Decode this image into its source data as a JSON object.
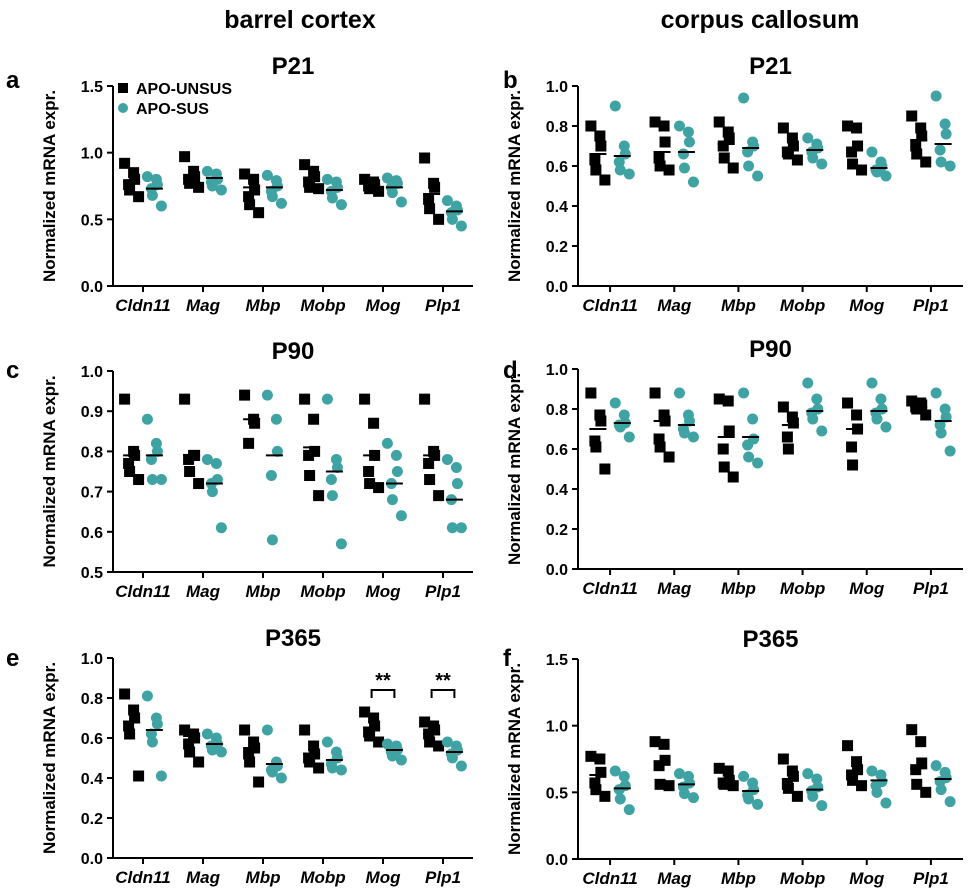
{
  "figure": {
    "columns": [
      "barrel cortex",
      "corpus callosum"
    ],
    "legend": [
      {
        "label": "APO-UNSUS",
        "marker": "square",
        "color": "#000000"
      },
      {
        "label": "APO-SUS",
        "marker": "circle",
        "color": "#3fa3a3"
      }
    ],
    "colors": {
      "unsus": "#000000",
      "sus": "#3fa3a3"
    }
  },
  "chart_data": [
    {
      "panel": "a",
      "type": "scatter",
      "title": "P21",
      "ylabel": "Normalized mRNA expr.",
      "ylim": [
        0,
        1.5
      ],
      "yticks": [
        "0.0",
        "0.5",
        "1.0",
        "1.5"
      ],
      "categories": [
        "Cldn11",
        "Mag",
        "Mbp",
        "Mobp",
        "Mog",
        "Plp1"
      ],
      "legend_position": "top-left",
      "series": [
        {
          "name": "APO-UNSUS",
          "means": [
            0.78,
            0.81,
            0.74,
            0.8,
            0.76,
            0.69
          ],
          "values": [
            [
              0.92,
              0.85,
              0.8,
              0.76,
              0.72,
              0.67
            ],
            [
              0.97,
              0.86,
              0.82,
              0.8,
              0.77,
              0.74
            ],
            [
              0.84,
              0.8,
              0.72,
              0.67,
              0.61,
              0.55
            ],
            [
              0.91,
              0.86,
              0.82,
              0.78,
              0.74,
              0.73
            ],
            [
              0.8,
              0.78,
              0.76,
              0.75,
              0.73,
              0.71
            ],
            [
              0.96,
              0.77,
              0.74,
              0.65,
              0.58,
              0.5
            ]
          ]
        },
        {
          "name": "APO-SUS",
          "means": [
            0.73,
            0.81,
            0.74,
            0.72,
            0.74,
            0.56
          ],
          "values": [
            [
              0.82,
              0.8,
              0.76,
              0.73,
              0.68,
              0.6
            ],
            [
              0.86,
              0.84,
              0.8,
              0.78,
              0.75,
              0.72
            ],
            [
              0.83,
              0.79,
              0.75,
              0.71,
              0.67,
              0.62
            ],
            [
              0.8,
              0.78,
              0.74,
              0.71,
              0.66,
              0.61
            ],
            [
              0.81,
              0.79,
              0.77,
              0.74,
              0.7,
              0.63
            ],
            [
              0.64,
              0.6,
              0.57,
              0.55,
              0.5,
              0.45
            ]
          ]
        }
      ]
    },
    {
      "panel": "b",
      "type": "scatter",
      "title": "P21",
      "ylabel": "Normalized mRNA expr.",
      "ylim": [
        0,
        1.0
      ],
      "yticks": [
        "0.0",
        "0.2",
        "0.4",
        "0.6",
        "0.8",
        "1.0"
      ],
      "categories": [
        "Cldn11",
        "Mag",
        "Mbp",
        "Mobp",
        "Mog",
        "Plp1"
      ],
      "series": [
        {
          "name": "APO-UNSUS",
          "means": [
            0.66,
            0.67,
            0.71,
            0.69,
            0.68,
            0.73
          ],
          "values": [
            [
              0.8,
              0.75,
              0.7,
              0.63,
              0.58,
              0.53
            ],
            [
              0.82,
              0.8,
              0.72,
              0.64,
              0.6,
              0.58
            ],
            [
              0.82,
              0.77,
              0.74,
              0.7,
              0.64,
              0.59
            ],
            [
              0.79,
              0.74,
              0.7,
              0.67,
              0.66,
              0.63
            ],
            [
              0.8,
              0.79,
              0.7,
              0.67,
              0.61,
              0.58
            ],
            [
              0.85,
              0.79,
              0.75,
              0.7,
              0.66,
              0.62
            ]
          ]
        },
        {
          "name": "APO-SUS",
          "means": [
            0.65,
            0.67,
            0.69,
            0.68,
            0.59,
            0.71
          ],
          "values": [
            [
              0.9,
              0.7,
              0.66,
              0.62,
              0.58,
              0.56
            ],
            [
              0.8,
              0.77,
              0.72,
              0.66,
              0.59,
              0.52
            ],
            [
              0.94,
              0.72,
              0.7,
              0.67,
              0.6,
              0.55
            ],
            [
              0.74,
              0.71,
              0.69,
              0.67,
              0.64,
              0.61
            ],
            [
              0.67,
              0.62,
              0.6,
              0.58,
              0.57,
              0.55
            ],
            [
              0.95,
              0.81,
              0.76,
              0.68,
              0.62,
              0.6
            ]
          ]
        }
      ]
    },
    {
      "panel": "c",
      "type": "scatter",
      "title": "P90",
      "ylabel": "Normalized mRNA expr.",
      "ylim": [
        0.5,
        1.0
      ],
      "yticks": [
        "0.5",
        "0.6",
        "0.7",
        "0.8",
        "0.9",
        "1.0"
      ],
      "categories": [
        "Cldn11",
        "Mag",
        "Mbp",
        "Mobp",
        "Mog",
        "Plp1"
      ],
      "series": [
        {
          "name": "APO-UNSUS",
          "means": [
            0.79,
            0.79,
            0.88,
            0.81,
            0.79,
            0.79
          ],
          "values": [
            [
              0.93,
              0.8,
              0.79,
              0.77,
              0.75,
              0.73
            ],
            [
              0.93,
              0.79,
              0.79,
              0.78,
              0.75,
              0.72
            ],
            [
              0.94,
              0.88,
              0.87,
              0.82
            ],
            [
              0.93,
              0.88,
              0.8,
              0.79,
              0.74,
              0.69
            ],
            [
              0.93,
              0.87,
              0.79,
              0.75,
              0.72,
              0.71
            ],
            [
              0.93,
              0.8,
              0.79,
              0.77,
              0.73,
              0.69
            ]
          ]
        },
        {
          "name": "APO-SUS",
          "means": [
            0.79,
            0.72,
            0.79,
            0.75,
            0.72,
            0.68
          ],
          "values": [
            [
              0.88,
              0.82,
              0.8,
              0.78,
              0.73,
              0.73
            ],
            [
              0.78,
              0.77,
              0.73,
              0.72,
              0.7,
              0.61
            ],
            [
              0.94,
              0.88,
              0.8,
              0.74,
              0.58
            ],
            [
              0.93,
              0.78,
              0.76,
              0.73,
              0.69,
              0.57
            ],
            [
              0.82,
              0.79,
              0.75,
              0.72,
              0.68,
              0.64
            ],
            [
              0.78,
              0.76,
              0.72,
              0.68,
              0.61,
              0.61
            ]
          ]
        }
      ]
    },
    {
      "panel": "d",
      "type": "scatter",
      "title": "P90",
      "ylabel": "Normalized mRNA expr.",
      "ylim": [
        0,
        1.0
      ],
      "yticks": [
        "0.0",
        "0.2",
        "0.4",
        "0.6",
        "0.8",
        "1.0"
      ],
      "categories": [
        "Cldn11",
        "Mag",
        "Mbp",
        "Mobp",
        "Mog",
        "Plp1"
      ],
      "series": [
        {
          "name": "APO-UNSUS",
          "means": [
            0.7,
            0.74,
            0.66,
            0.72,
            0.7,
            0.81
          ],
          "values": [
            [
              0.88,
              0.77,
              0.74,
              0.64,
              0.61,
              0.5
            ],
            [
              0.88,
              0.77,
              0.74,
              0.65,
              0.61,
              0.56
            ],
            [
              0.85,
              0.84,
              0.69,
              0.6,
              0.51,
              0.46
            ],
            [
              0.81,
              0.76,
              0.73,
              0.66,
              0.6
            ],
            [
              0.83,
              0.77,
              0.7,
              0.61,
              0.52
            ],
            [
              0.84,
              0.83,
              0.82,
              0.81,
              0.8,
              0.77
            ]
          ]
        },
        {
          "name": "APO-SUS",
          "means": [
            0.73,
            0.72,
            0.66,
            0.79,
            0.79,
            0.74
          ],
          "values": [
            [
              0.83,
              0.77,
              0.73,
              0.72,
              0.71,
              0.66
            ],
            [
              0.88,
              0.77,
              0.74,
              0.7,
              0.68,
              0.66
            ],
            [
              0.88,
              0.75,
              0.65,
              0.62,
              0.56,
              0.53
            ],
            [
              0.93,
              0.85,
              0.8,
              0.78,
              0.75,
              0.69
            ],
            [
              0.93,
              0.85,
              0.8,
              0.78,
              0.75,
              0.71
            ],
            [
              0.88,
              0.8,
              0.76,
              0.72,
              0.68,
              0.59
            ]
          ]
        }
      ]
    },
    {
      "panel": "e",
      "type": "scatter",
      "title": "P365",
      "ylabel": "Normalized mRNA expr.",
      "ylim": [
        0,
        1.0
      ],
      "yticks": [
        "0.0",
        "0.2",
        "0.4",
        "0.6",
        "0.8",
        "1.0"
      ],
      "categories": [
        "Cldn11",
        "Mag",
        "Mbp",
        "Mobp",
        "Mog",
        "Plp1"
      ],
      "significance": [
        {
          "category": "Mog",
          "label": "**"
        },
        {
          "category": "Plp1",
          "label": "**"
        }
      ],
      "series": [
        {
          "name": "APO-UNSUS",
          "means": [
            0.68,
            0.61,
            0.55,
            0.52,
            0.65,
            0.62
          ],
          "values": [
            [
              0.82,
              0.74,
              0.7,
              0.66,
              0.62,
              0.41
            ],
            [
              0.64,
              0.62,
              0.6,
              0.57,
              0.53,
              0.48
            ],
            [
              0.64,
              0.58,
              0.55,
              0.52,
              0.48,
              0.38
            ],
            [
              0.64,
              0.56,
              0.52,
              0.5,
              0.48,
              0.45
            ],
            [
              0.73,
              0.7,
              0.66,
              0.63,
              0.61,
              0.58
            ],
            [
              0.68,
              0.66,
              0.64,
              0.62,
              0.58,
              0.56
            ]
          ]
        },
        {
          "name": "APO-SUS",
          "means": [
            0.64,
            0.57,
            0.47,
            0.49,
            0.54,
            0.53
          ],
          "values": [
            [
              0.81,
              0.7,
              0.67,
              0.62,
              0.58,
              0.41
            ],
            [
              0.62,
              0.6,
              0.57,
              0.56,
              0.54,
              0.53
            ],
            [
              0.64,
              0.48,
              0.46,
              0.44,
              0.43,
              0.4
            ],
            [
              0.58,
              0.53,
              0.5,
              0.47,
              0.45,
              0.44
            ],
            [
              0.57,
              0.56,
              0.54,
              0.53,
              0.51,
              0.49
            ],
            [
              0.58,
              0.56,
              0.54,
              0.52,
              0.5,
              0.46
            ]
          ]
        }
      ]
    },
    {
      "panel": "f",
      "type": "scatter",
      "title": "P365",
      "ylabel": "Normalized mRNA expr.",
      "ylim": [
        0,
        1.5
      ],
      "yticks": [
        "0.0",
        "0.5",
        "1.0",
        "1.5"
      ],
      "categories": [
        "Cldn11",
        "Mag",
        "Mbp",
        "Mobp",
        "Mog",
        "Plp1"
      ],
      "series": [
        {
          "name": "APO-UNSUS",
          "means": [
            0.63,
            0.73,
            0.6,
            0.6,
            0.65,
            0.68
          ],
          "values": [
            [
              0.77,
              0.75,
              0.65,
              0.57,
              0.52,
              0.47
            ],
            [
              0.88,
              0.86,
              0.74,
              0.7,
              0.56,
              0.55
            ],
            [
              0.68,
              0.66,
              0.59,
              0.57,
              0.56,
              0.55
            ],
            [
              0.75,
              0.66,
              0.62,
              0.56,
              0.53,
              0.47
            ],
            [
              0.85,
              0.73,
              0.67,
              0.63,
              0.59,
              0.55
            ],
            [
              0.97,
              0.88,
              0.72,
              0.67,
              0.56,
              0.5
            ]
          ]
        },
        {
          "name": "APO-SUS",
          "means": [
            0.53,
            0.56,
            0.51,
            0.52,
            0.59,
            0.6
          ],
          "values": [
            [
              0.66,
              0.62,
              0.55,
              0.52,
              0.45,
              0.37
            ],
            [
              0.64,
              0.62,
              0.57,
              0.54,
              0.49,
              0.46
            ],
            [
              0.62,
              0.57,
              0.52,
              0.48,
              0.45,
              0.41
            ],
            [
              0.64,
              0.6,
              0.54,
              0.51,
              0.47,
              0.4
            ],
            [
              0.66,
              0.63,
              0.58,
              0.55,
              0.5,
              0.42
            ],
            [
              0.7,
              0.65,
              0.61,
              0.58,
              0.52,
              0.43
            ]
          ]
        }
      ]
    }
  ]
}
